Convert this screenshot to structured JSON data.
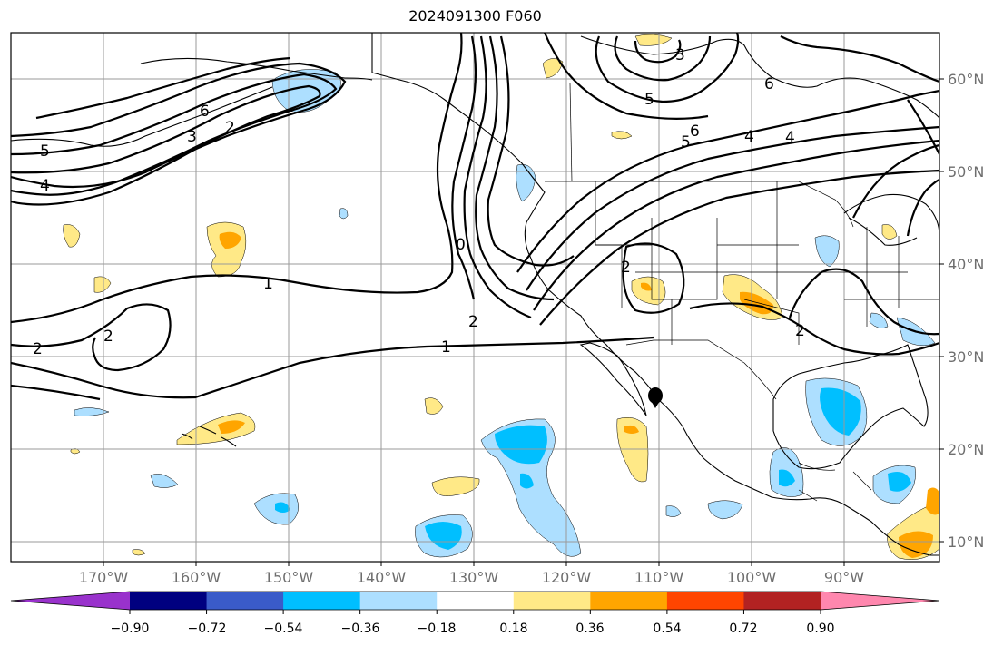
{
  "title": "2024091300 F060",
  "map": {
    "lon_labels": [
      "170°W",
      "160°W",
      "150°W",
      "140°W",
      "130°W",
      "120°W",
      "110°W",
      "100°W",
      "90°W"
    ],
    "lat_labels": [
      "60°N",
      "50°N",
      "40°N",
      "30°N",
      "20°N",
      "10°N"
    ]
  },
  "colorbar": {
    "ticks": [
      "−0.90",
      "−0.72",
      "−0.54",
      "−0.36",
      "−0.18",
      "0.18",
      "0.36",
      "0.54",
      "0.72",
      "0.90"
    ],
    "colors": [
      "#9932CC",
      "#000080",
      "#3A5BC9",
      "#00BFFF",
      "#ADDFFF",
      "#FFFFFF",
      "#FFE987",
      "#FFA500",
      "#FF4500",
      "#B22222",
      "#FF87AE"
    ]
  },
  "contour_labels": [
    "6",
    "5",
    "4",
    "3",
    "2",
    "1",
    "6",
    "5",
    "4",
    "3",
    "2",
    "1",
    "2",
    "2",
    "5",
    "4",
    "6",
    "2",
    "2",
    "0"
  ]
}
